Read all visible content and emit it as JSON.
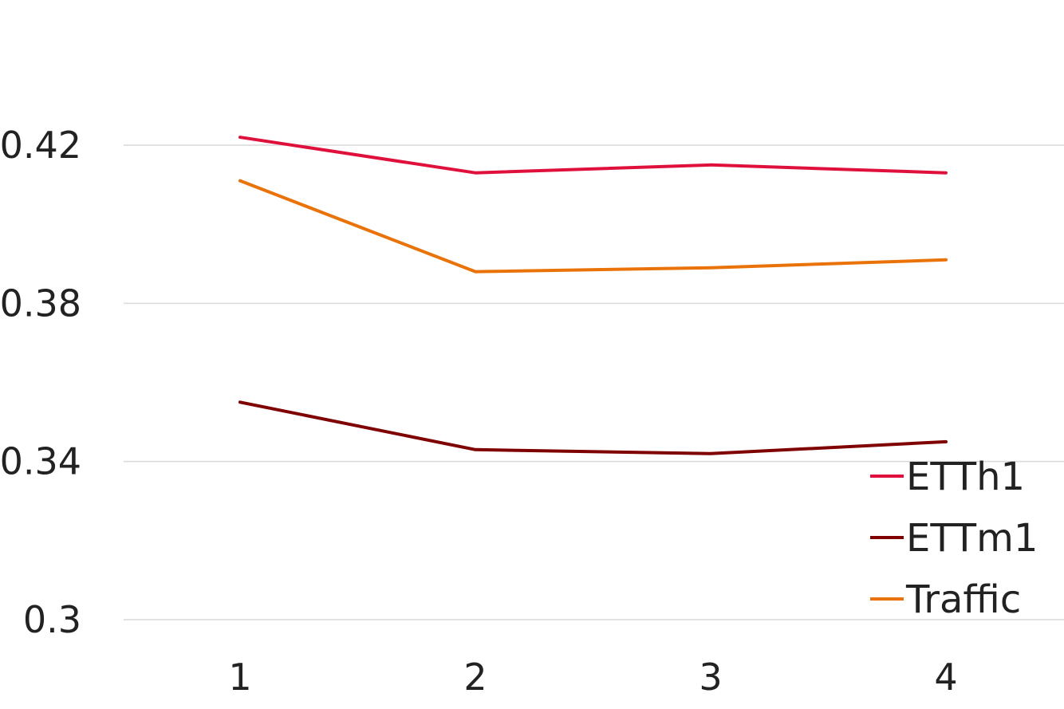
{
  "chart_data": {
    "type": "line",
    "title": "",
    "xlabel": "",
    "ylabel": "",
    "categories": [
      "1",
      "2",
      "3",
      "4"
    ],
    "ylim": [
      0.3,
      0.44
    ],
    "yticks": [
      "0.3",
      "0.34",
      "0.38",
      "0.42"
    ],
    "grid": true,
    "legend_position": "bottom-right",
    "series": [
      {
        "name": "ETTh1",
        "color": "#e0103c",
        "values": [
          0.422,
          0.413,
          0.415,
          0.413
        ]
      },
      {
        "name": "ETTm1",
        "color": "#7f0000",
        "values": [
          0.355,
          0.343,
          0.342,
          0.345
        ]
      },
      {
        "name": "Traffic",
        "color": "#e97309",
        "values": [
          0.411,
          0.388,
          0.389,
          0.391
        ]
      }
    ]
  }
}
